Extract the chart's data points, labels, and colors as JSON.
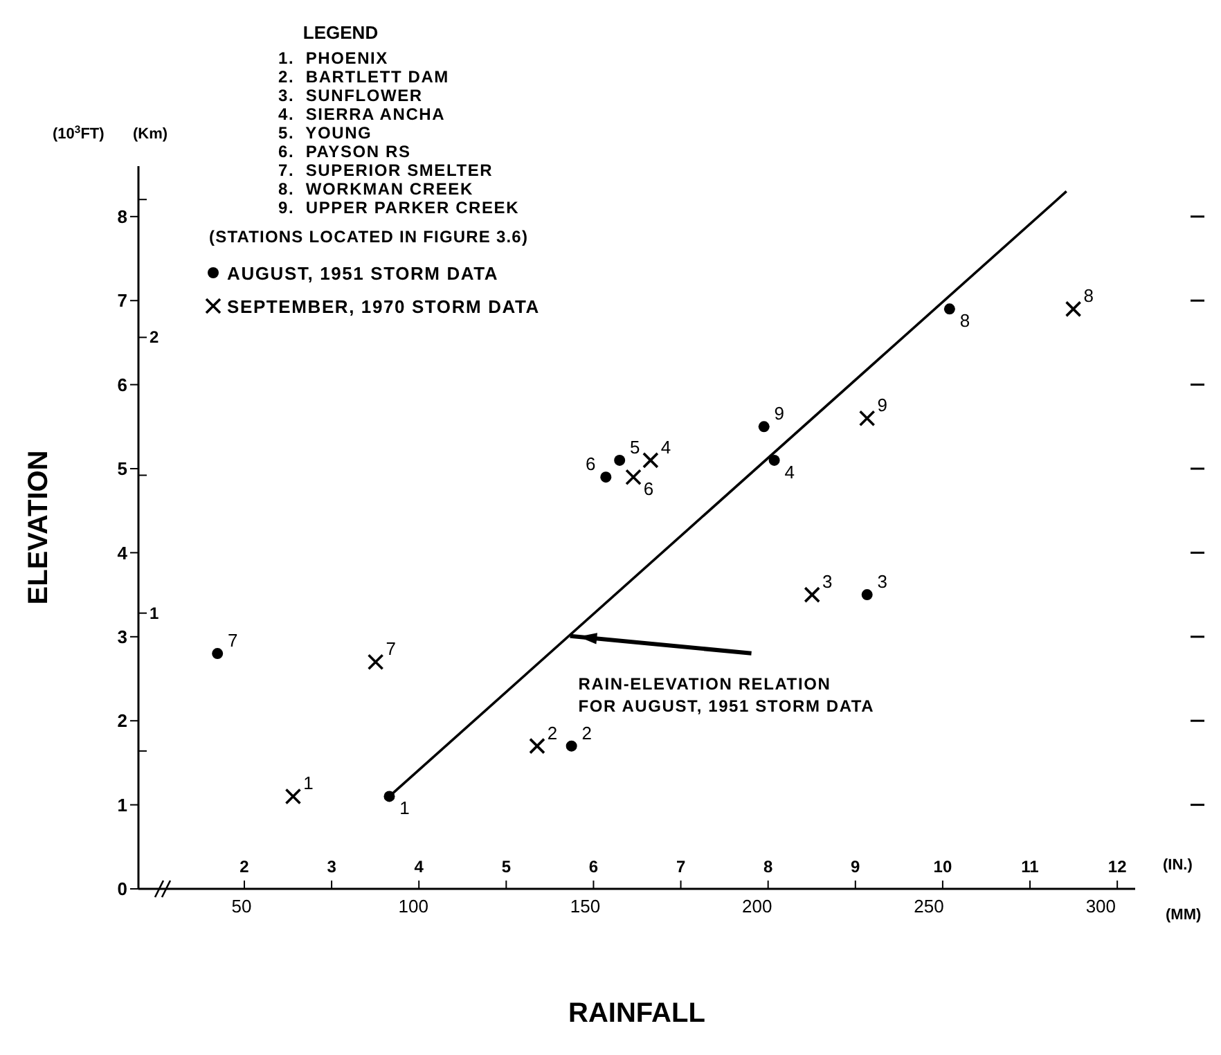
{
  "chart_data": {
    "type": "scatter",
    "xlabel": "RAINFALL",
    "ylabel": "ELEVATION",
    "y2label": "(Km)",
    "x2label": "(IN.)",
    "legend_title": "LEGEND",
    "legend": "top left",
    "xlim": [
      20,
      310
    ],
    "xticks": [
      50,
      100,
      150,
      200,
      250,
      300
    ],
    "ylim": [
      0,
      8.6
    ],
    "yticks": [
      0,
      1,
      2,
      3,
      4,
      5,
      6,
      7,
      8
    ],
    "x2lim": [
      0.787,
      12.205
    ],
    "x2ticks": [
      2,
      3,
      4,
      5,
      6,
      7,
      8,
      9,
      10,
      11,
      12
    ],
    "y2lim": [
      0,
      2.621
    ],
    "y2ticks": [
      {
        "value": 0.5,
        "label": null
      },
      1,
      {
        "value": 1.5,
        "label": null
      },
      2,
      {
        "value": 2.5,
        "label": null
      }
    ],
    "series": [
      {
        "name": "AUGUST, 1951 STORM DATA",
        "type": "scatter",
        "marker": "circle",
        "color": "#000000",
        "x": [
          93,
          146,
          232,
          205,
          160,
          156,
          43,
          256,
          202
        ],
        "values": [
          1.1,
          1.7,
          3.5,
          5.1,
          5.1,
          4.9,
          2.8,
          6.9,
          5.5
        ]
      },
      {
        "name": "SEPTEMBER, 1970 STORM DATA",
        "type": "scatter",
        "marker": "cross",
        "color": "#000000",
        "x": [
          65,
          136,
          216,
          169,
          164,
          89,
          292,
          232
        ],
        "values": [
          1.1,
          1.7,
          3.5,
          5.1,
          4.9,
          2.7,
          6.9,
          5.6
        ]
      },
      {
        "type": "line",
        "marker": "none",
        "color": "#000000",
        "x": [
          93,
          290
        ],
        "values": [
          1.1,
          8.3
        ]
      }
    ],
    "annotations": [
      "(10$^{3}$FT)",
      "(MM)",
      "1.  PHOENIX",
      "2.  BARTLETT DAM",
      "3.  SUNFLOWER",
      "4.  SIERRA ANCHA",
      "5.  YOUNG",
      "6.  PAYSON RS",
      "7.  SUPERIOR SMELTER",
      "8.  WORKMAN CREEK",
      "9.  UPPER PARKER CREEK",
      "(STATIONS LOCATED IN FIGURE 3.6)",
      {
        "text": "1",
        "x": 93,
        "y": 1.1
      },
      {
        "text": "2",
        "x": 146,
        "y": 1.7
      },
      {
        "text": "3",
        "x": 232,
        "y": 3.5
      },
      {
        "text": "4",
        "x": 205,
        "y": 5.1
      },
      {
        "text": "5",
        "x": 160,
        "y": 5.1
      },
      {
        "text": "6",
        "x": 156,
        "y": 4.9
      },
      {
        "text": "7",
        "x": 43,
        "y": 2.8
      },
      {
        "text": "8",
        "x": 256,
        "y": 6.9
      },
      {
        "text": "9",
        "x": 202,
        "y": 5.5
      },
      {
        "text": "1",
        "x": 65,
        "y": 1.1
      },
      {
        "text": "2",
        "x": 136,
        "y": 1.7
      },
      {
        "text": "3",
        "x": 216,
        "y": 3.5
      },
      {
        "text": "4",
        "x": 169,
        "y": 5.1
      },
      {
        "text": "6",
        "x": 164,
        "y": 4.9
      },
      {
        "text": "7",
        "x": 89,
        "y": 2.7
      },
      {
        "text": "8",
        "x": 292,
        "y": 6.9
      },
      {
        "text": "9",
        "x": 232,
        "y": 5.6
      },
      {
        "text": "RAIN-ELEVATION RELATION\nFOR AUGUST, 1951 STORM DATA",
        "x": 148,
        "y": 3.0
      }
    ]
  }
}
